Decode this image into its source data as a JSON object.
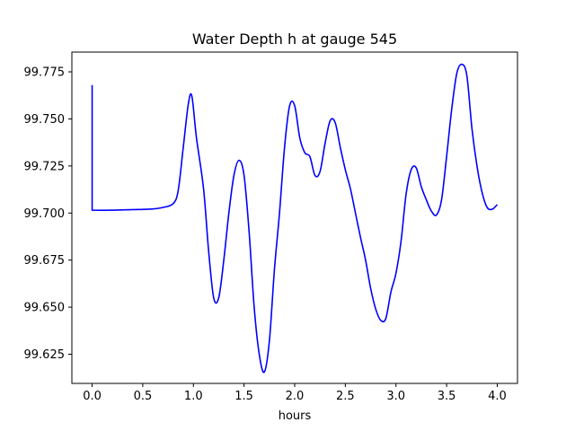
{
  "chart_data": {
    "type": "line",
    "title": "Water Depth h at gauge 545",
    "xlabel": "hours",
    "ylabel": "",
    "xlim": [
      -0.2,
      4.2
    ],
    "ylim": [
      99.6095,
      99.7855
    ],
    "xticks": [
      0.0,
      0.5,
      1.0,
      1.5,
      2.0,
      2.5,
      3.0,
      3.5,
      4.0
    ],
    "xtick_labels": [
      "0.0",
      "0.5",
      "1.0",
      "1.5",
      "2.0",
      "2.5",
      "3.0",
      "3.5",
      "4.0"
    ],
    "yticks": [
      99.625,
      99.65,
      99.675,
      99.7,
      99.725,
      99.75,
      99.775
    ],
    "ytick_labels": [
      "99.625",
      "99.650",
      "99.675",
      "99.700",
      "99.725",
      "99.750",
      "99.775"
    ],
    "grid": false,
    "series": [
      {
        "color": "#0000ff",
        "points": [
          [
            0.0,
            99.768
          ],
          [
            0.0,
            99.7015
          ],
          [
            0.2,
            99.7015
          ],
          [
            0.4,
            99.7018
          ],
          [
            0.6,
            99.7022
          ],
          [
            0.7,
            99.703
          ],
          [
            0.8,
            99.705
          ],
          [
            0.85,
            99.712
          ],
          [
            0.9,
            99.735
          ],
          [
            0.95,
            99.758
          ],
          [
            0.985,
            99.762
          ],
          [
            1.03,
            99.74
          ],
          [
            1.1,
            99.713
          ],
          [
            1.15,
            99.68
          ],
          [
            1.2,
            99.655
          ],
          [
            1.25,
            99.655
          ],
          [
            1.3,
            99.675
          ],
          [
            1.35,
            99.7
          ],
          [
            1.4,
            99.72
          ],
          [
            1.45,
            99.728
          ],
          [
            1.5,
            99.72
          ],
          [
            1.55,
            99.69
          ],
          [
            1.6,
            99.65
          ],
          [
            1.65,
            99.625
          ],
          [
            1.7,
            99.6155
          ],
          [
            1.75,
            99.632
          ],
          [
            1.8,
            99.67
          ],
          [
            1.85,
            99.7
          ],
          [
            1.9,
            99.735
          ],
          [
            1.95,
            99.757
          ],
          [
            2.0,
            99.757
          ],
          [
            2.05,
            99.74
          ],
          [
            2.1,
            99.732
          ],
          [
            2.15,
            99.73
          ],
          [
            2.2,
            99.72
          ],
          [
            2.25,
            99.722
          ],
          [
            2.3,
            99.737
          ],
          [
            2.35,
            99.749
          ],
          [
            2.4,
            99.748
          ],
          [
            2.45,
            99.735
          ],
          [
            2.5,
            99.723
          ],
          [
            2.55,
            99.713
          ],
          [
            2.6,
            99.7
          ],
          [
            2.65,
            99.687
          ],
          [
            2.7,
            99.675
          ],
          [
            2.75,
            99.66
          ],
          [
            2.8,
            99.649
          ],
          [
            2.85,
            99.643
          ],
          [
            2.9,
            99.644
          ],
          [
            2.95,
            99.658
          ],
          [
            3.0,
            99.668
          ],
          [
            3.05,
            99.685
          ],
          [
            3.1,
            99.71
          ],
          [
            3.15,
            99.723
          ],
          [
            3.2,
            99.724
          ],
          [
            3.25,
            99.714
          ],
          [
            3.3,
            99.707
          ],
          [
            3.35,
            99.701
          ],
          [
            3.4,
            99.699
          ],
          [
            3.45,
            99.707
          ],
          [
            3.5,
            99.73
          ],
          [
            3.55,
            99.755
          ],
          [
            3.6,
            99.774
          ],
          [
            3.65,
            99.779
          ],
          [
            3.7,
            99.773
          ],
          [
            3.75,
            99.745
          ],
          [
            3.8,
            99.725
          ],
          [
            3.85,
            99.711
          ],
          [
            3.9,
            99.703
          ],
          [
            3.95,
            99.702
          ],
          [
            4.0,
            99.7045
          ]
        ]
      }
    ]
  }
}
